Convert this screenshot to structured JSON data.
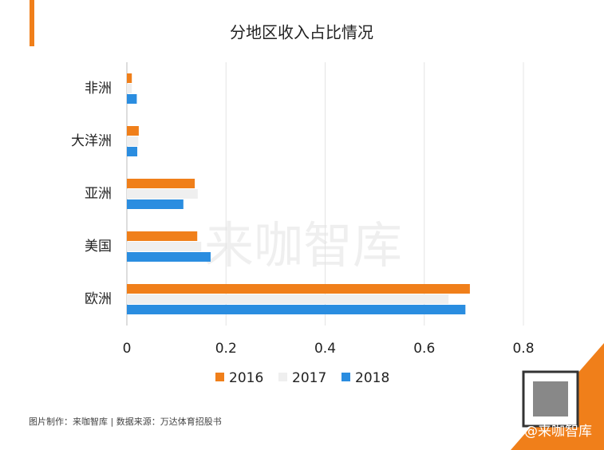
{
  "chart_data": {
    "type": "bar",
    "orientation": "horizontal",
    "title": "分地区收入占比情况",
    "categories": [
      "非洲",
      "大洋洲",
      "亚洲",
      "美国",
      "欧洲"
    ],
    "series": [
      {
        "name": "2016",
        "color": "#f07f1a",
        "values": [
          0.01,
          0.024,
          0.137,
          0.142,
          0.692
        ]
      },
      {
        "name": "2017",
        "color": "#efefef",
        "values": [
          0.01,
          0.023,
          0.143,
          0.15,
          0.649
        ]
      },
      {
        "name": "2018",
        "color": "#2a8de0",
        "values": [
          0.02,
          0.021,
          0.114,
          0.169,
          0.683
        ]
      }
    ],
    "xlim": [
      0,
      0.8
    ],
    "xticks": [
      0,
      0.2,
      0.4,
      0.6,
      0.8
    ],
    "grid": true,
    "watermark": "来咖智库",
    "source": "图片制作：来咖智库 | 数据来源：万达体育招股书",
    "credit": "头条 @来咖智库"
  }
}
